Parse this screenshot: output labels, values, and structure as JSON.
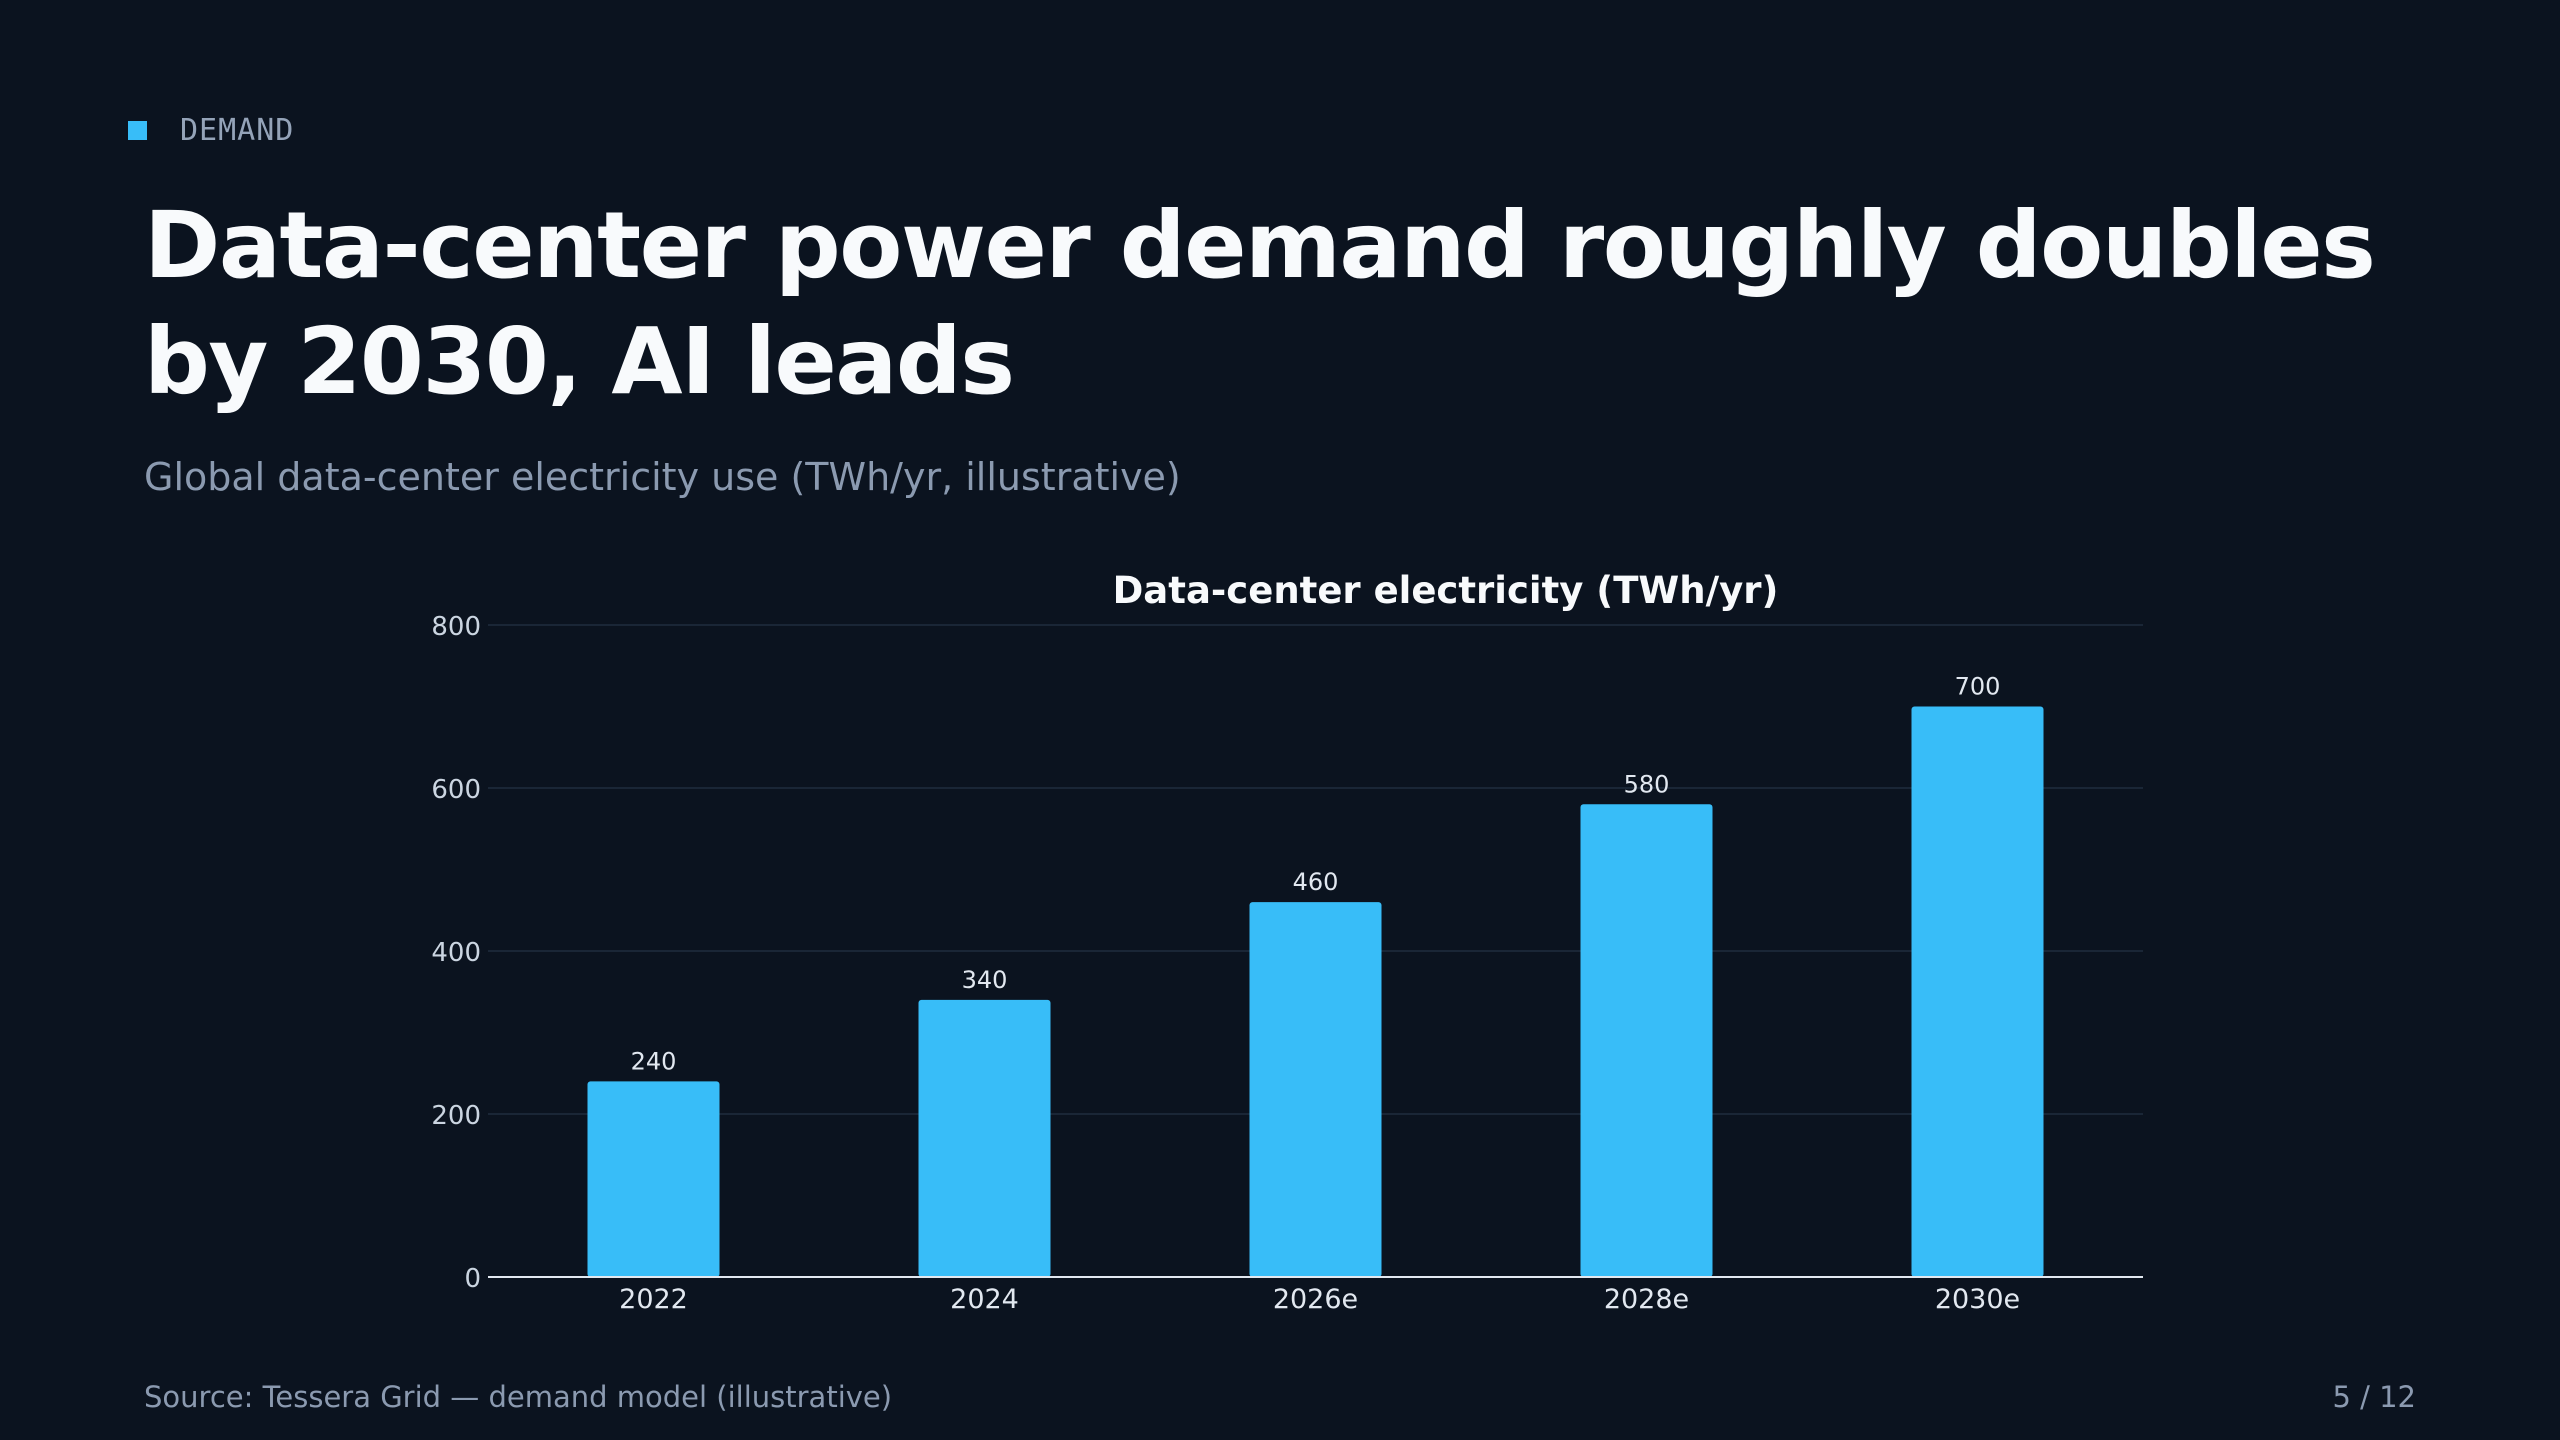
{
  "slide": {
    "kicker": "DEMAND",
    "title": "Data-center power demand roughly doubles by 2030, AI leads",
    "subtitle": "Global data-center electricity use (TWh/yr, illustrative)",
    "source": "Source: Tessera Grid — demand model (illustrative)",
    "page": "5 / 12"
  },
  "colors": {
    "background": "#0b131f",
    "accent": "#38bdf8",
    "text_primary": "#f8fafc",
    "text_muted": "#8b9ab0"
  },
  "chart_data": {
    "type": "bar",
    "title": "Data-center electricity (TWh/yr)",
    "xlabel": "",
    "ylabel": "",
    "categories": [
      "2022",
      "2024",
      "2026e",
      "2028e",
      "2030e"
    ],
    "values": [
      240,
      340,
      460,
      580,
      700
    ],
    "value_labels": [
      "240",
      "340",
      "460",
      "580",
      "700"
    ],
    "ylim": [
      0,
      800
    ],
    "yticks": [
      0,
      200,
      400,
      600,
      800
    ],
    "ytick_labels": [
      "0",
      "200",
      "400",
      "600",
      "800"
    ],
    "grid": true,
    "legend": "none",
    "bar_color": "#38bdf8"
  }
}
